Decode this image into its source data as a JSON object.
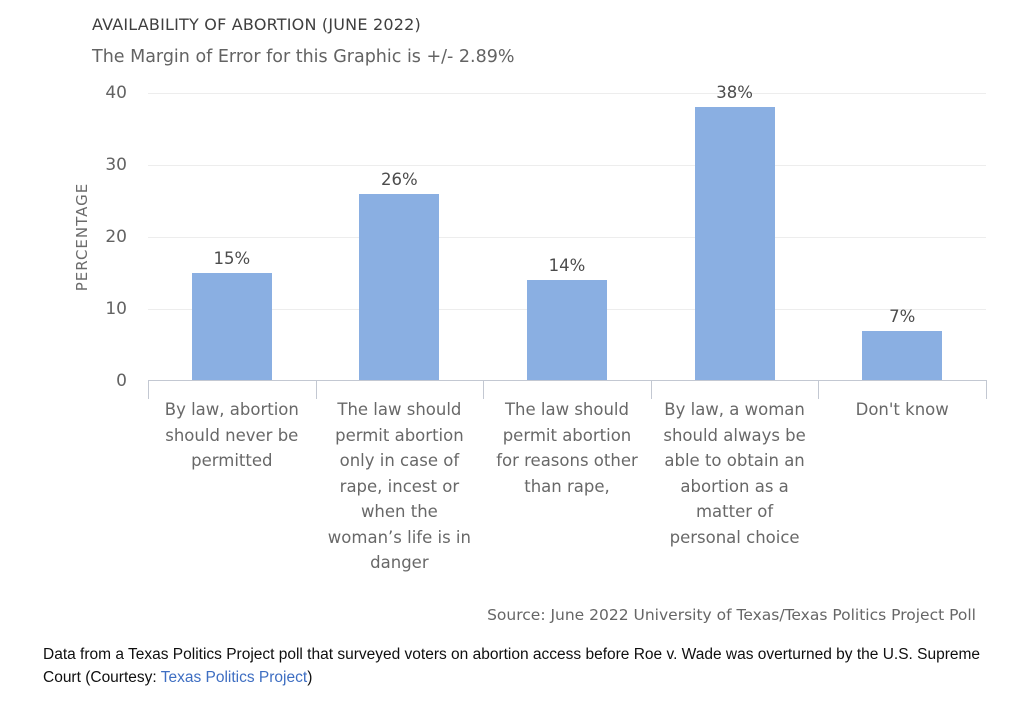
{
  "page": {
    "title": "AVAILABILITY OF ABORTION (JUNE 2022)",
    "subtitle": "The Margin of Error for this Graphic is +/- 2.89%",
    "source": "Source: June 2022 University of Texas/Texas Politics Project Poll",
    "caption": {
      "before_link": "Data from a Texas Politics Project poll that surveyed voters on abortion access before Roe v. Wade was overturned by the U.S. Supreme Court (Courtesy: ",
      "link": "Texas Politics Project",
      "after_link": ")"
    }
  },
  "chart_data": {
    "type": "bar",
    "title": "AVAILABILITY OF ABORTION (JUNE 2022)",
    "subtitle": "The Margin of Error for this Graphic is +/- 2.89%",
    "xlabel": "",
    "ylabel": "PERCENTAGE",
    "ylim": [
      0,
      40
    ],
    "yticks": [
      0,
      10,
      20,
      30,
      40
    ],
    "grid": true,
    "legend": "none",
    "bar_color": "#8AAFE2",
    "categories": [
      "By law, abortion should never be permitted",
      "The law should permit abortion only in case of rape, incest or when the woman’s life is in danger",
      "The law should permit abortion for reasons other than rape,",
      "By law, a woman should always be able to obtain an abortion as a matter of personal choice",
      "Don't know"
    ],
    "values": [
      15,
      26,
      14,
      38,
      7
    ],
    "value_labels": [
      "15%",
      "26%",
      "14%",
      "38%",
      "7%"
    ],
    "source": "Source: June 2022 University of Texas/Texas Politics Project Poll"
  }
}
